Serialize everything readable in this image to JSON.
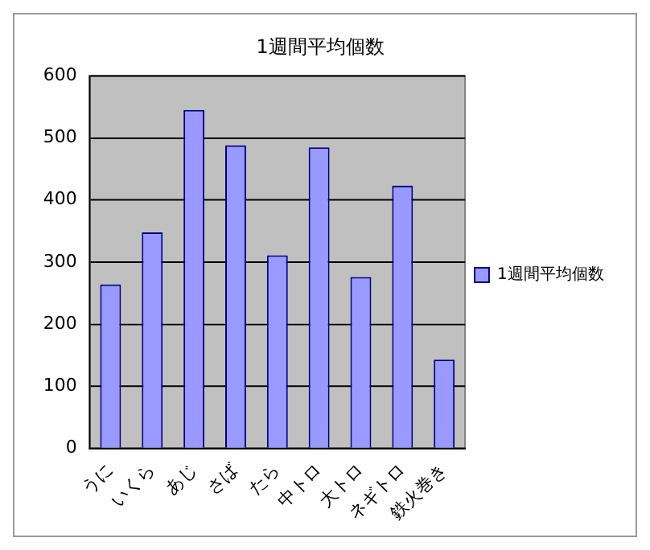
{
  "chart_data": {
    "type": "bar",
    "title": "1週間平均個数",
    "categories": [
      "うに",
      "いくら",
      "あじ",
      "さば",
      "たら",
      "中トロ",
      "大トロ",
      "ネギトロ",
      "鉄火巻き"
    ],
    "series": [
      {
        "name": "1週間平均個数",
        "color": "#9999ff",
        "values": [
          264,
          348,
          545,
          488,
          311,
          485,
          276,
          423,
          143
        ]
      }
    ],
    "ylim": [
      0,
      600
    ],
    "yticks": [
      0,
      100,
      200,
      300,
      400,
      500,
      600
    ],
    "grid": "y",
    "legend": "right"
  }
}
